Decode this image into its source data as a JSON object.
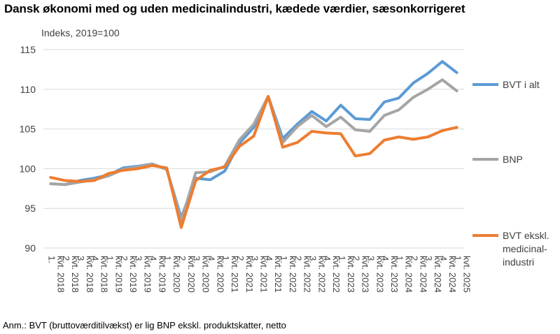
{
  "title": "Dansk økonomi med og uden medicinalindustri, kædede værdier, sæsonkorrigeret",
  "note": "Anm.: BVT (bruttoværditilvækst) er lig BNP ekskl. produktskatter, netto",
  "chart_data": {
    "type": "line",
    "ylabel": "Indeks, 2019=100",
    "ylim": [
      90,
      115
    ],
    "yticks": [
      "90",
      "95",
      "100",
      "105",
      "110",
      "115"
    ],
    "grid": "horizontal",
    "legend": "right",
    "categories": [
      "1. kvt. 2018",
      "2. kvt. 2018",
      "3. kvt. 2018",
      "4. kvt. 2018",
      "1. kvt. 2019",
      "2. kvt. 2019",
      "3. kvt. 2019",
      "4. kvt. 2019",
      "1. kvt. 2020",
      "2. kvt. 2020",
      "3. kvt. 2020",
      "4. kvt. 2020",
      "1. kvt. 2021",
      "2. kvt. 2021",
      "3. kvt. 2021",
      "4. kvt. 2021",
      "1. kvt. 2022",
      "2. kvt. 2022",
      "3. kvt. 2022",
      "4. kvt. 2022",
      "1. kvt. 2023",
      "2. kvt. 2023",
      "3. kvt. 2023",
      "4. kvt. 2023",
      "1. kvt. 2024",
      "2. kvt. 2024",
      "3. kvt. 2024",
      "4. kvt. 2024",
      "1. kvt. 2025"
    ],
    "series": [
      {
        "name": "BVT i alt",
        "color": "#5b9bd5",
        "values": [
          98.1,
          98.0,
          98.5,
          98.8,
          99.2,
          100.1,
          100.3,
          100.6,
          99.9,
          93.8,
          98.8,
          98.6,
          99.7,
          103.2,
          105.2,
          109.1,
          103.8,
          105.6,
          107.2,
          106.0,
          108.0,
          106.3,
          106.2,
          108.4,
          108.9,
          110.8,
          112.0,
          113.5,
          112.1
        ]
      },
      {
        "name": "BNP",
        "color": "#a5a5a5",
        "values": [
          98.1,
          98.0,
          98.3,
          98.6,
          99.1,
          99.9,
          100.2,
          100.6,
          99.9,
          93.4,
          99.5,
          99.6,
          100.3,
          103.6,
          105.6,
          109.1,
          103.3,
          105.3,
          106.7,
          105.3,
          106.5,
          104.9,
          104.7,
          106.7,
          107.4,
          109.0,
          110.0,
          111.2,
          109.8
        ]
      },
      {
        "name": "BVT ekskl. medicinal-industri",
        "color": "#ed7d31",
        "values": [
          98.9,
          98.5,
          98.4,
          98.5,
          99.4,
          99.8,
          100.0,
          100.4,
          100.1,
          92.6,
          98.5,
          99.8,
          100.2,
          102.8,
          104.1,
          109.1,
          102.7,
          103.3,
          104.7,
          104.5,
          104.4,
          101.6,
          101.9,
          103.6,
          104.0,
          103.7,
          104.0,
          104.8,
          105.2
        ]
      }
    ],
    "legend_labels": [
      [
        "BVT i alt"
      ],
      [
        "BNP"
      ],
      [
        "BVT ekskl.",
        "medicinal-",
        "industri"
      ]
    ]
  }
}
